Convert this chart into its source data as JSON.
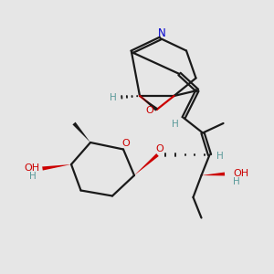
{
  "background_color": "#e6e6e6",
  "bond_color": "#1a1a1a",
  "N_color": "#0000cc",
  "O_color": "#cc0000",
  "H_color": "#5a9a9a",
  "line_width": 1.6,
  "figsize": [
    3.0,
    3.0
  ],
  "dpi": 100,
  "xlim": [
    0,
    10
  ],
  "ylim": [
    0,
    10
  ]
}
